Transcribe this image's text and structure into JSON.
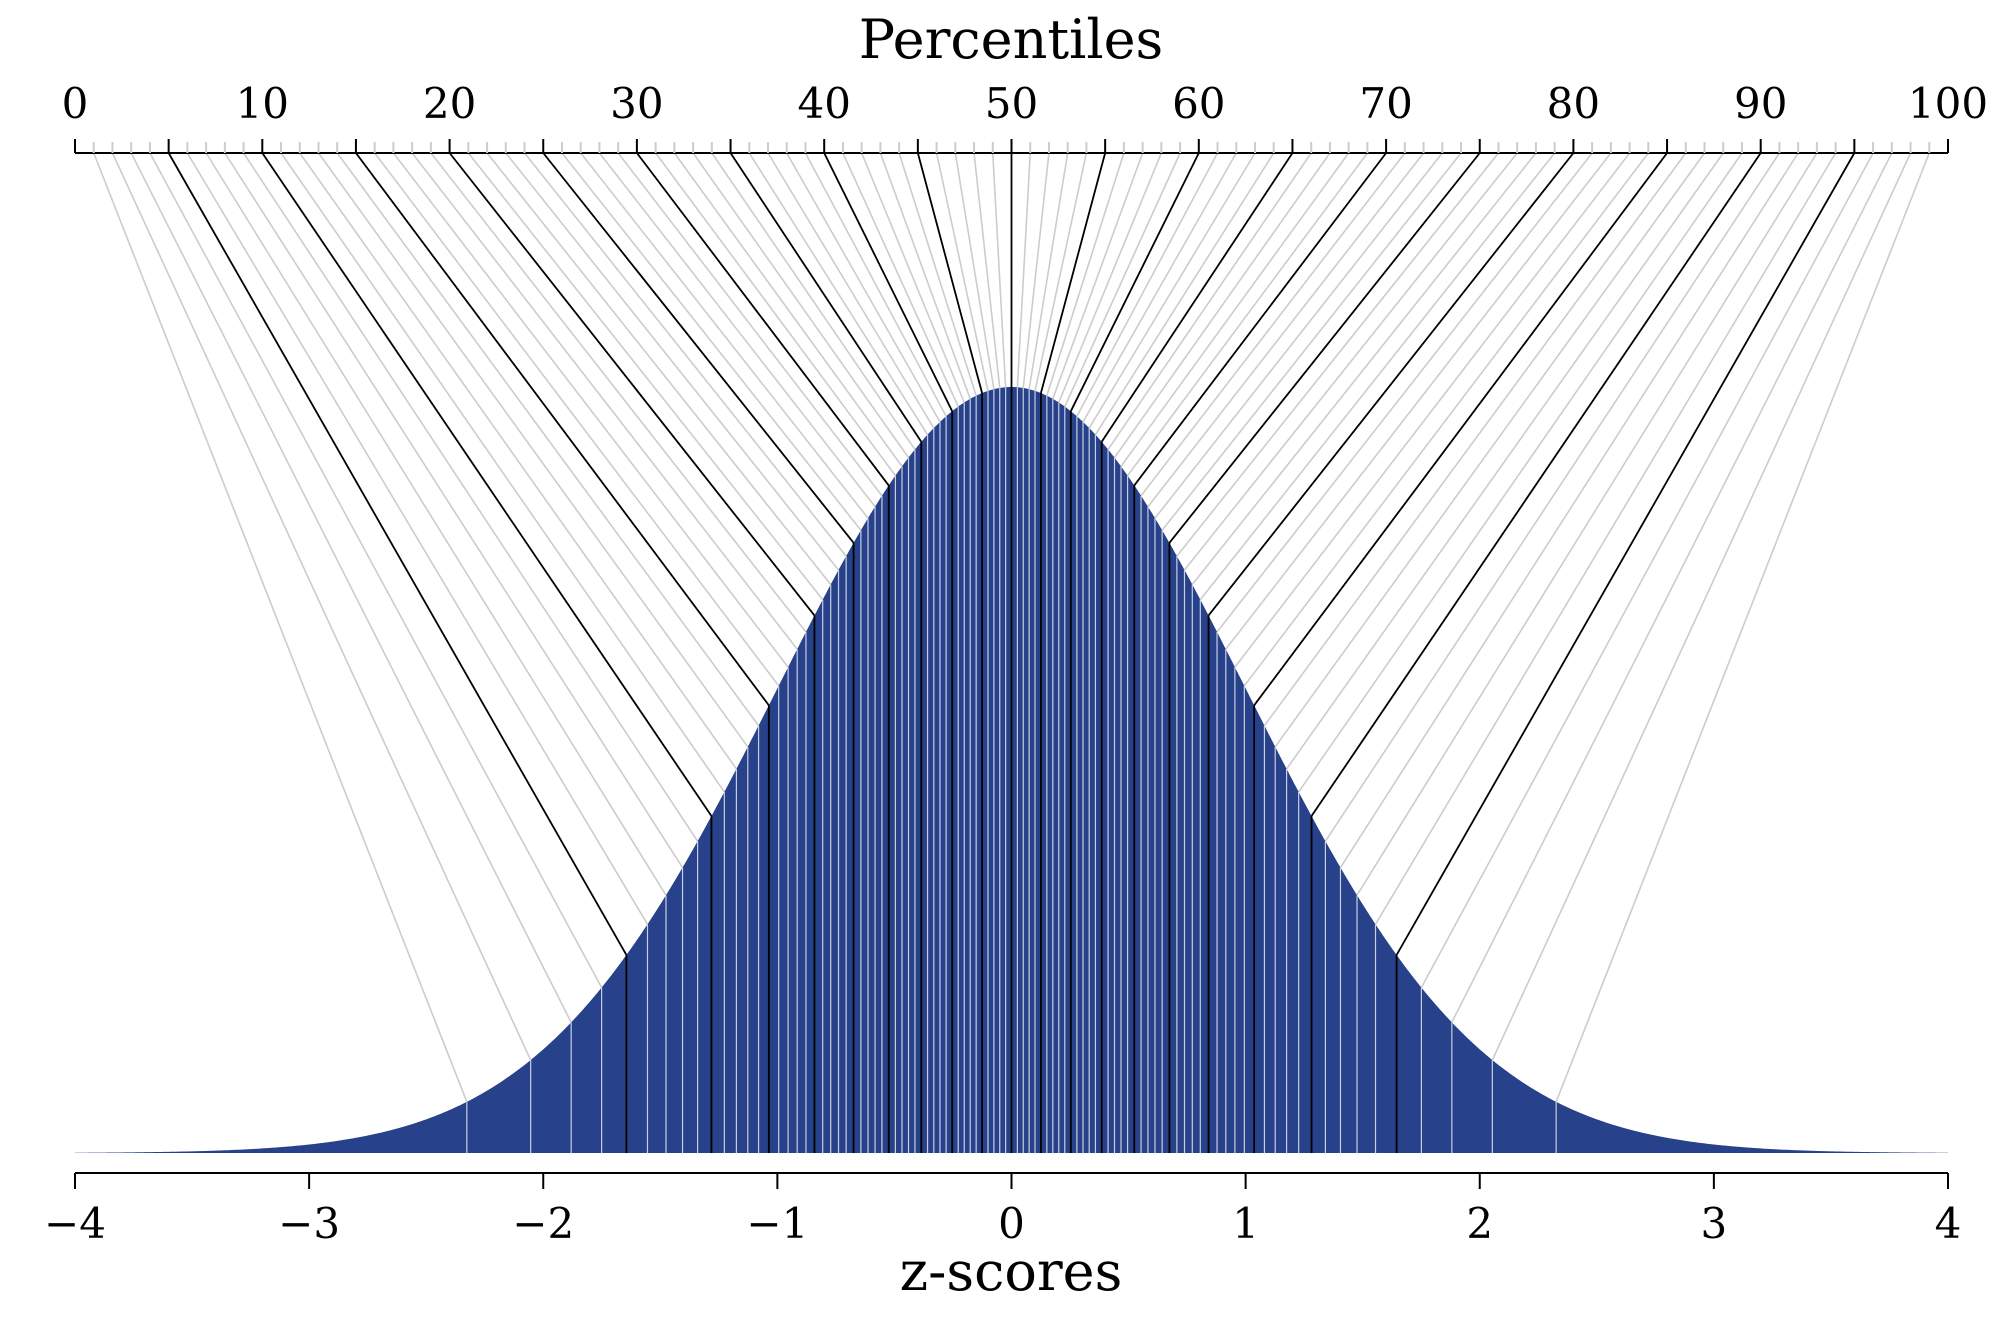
{
  "chart_data": {
    "type": "area",
    "title": "",
    "top_axis": {
      "label": "Percentiles",
      "range": [
        0,
        100
      ],
      "tick_labels": [
        "0",
        "10",
        "20",
        "30",
        "40",
        "50",
        "60",
        "70",
        "80",
        "90",
        "100"
      ],
      "major_ticks_every": 5,
      "minor_ticks_every": 1
    },
    "bottom_axis": {
      "label": "z-scores",
      "range": [
        -4,
        4
      ],
      "tick_values": [
        -4,
        -3,
        -2,
        -1,
        0,
        1,
        2,
        3,
        4
      ],
      "tick_labels": [
        "−4",
        "−3",
        "−2",
        "−1",
        "0",
        "1",
        "2",
        "3",
        "4"
      ]
    },
    "distribution": "standard-normal",
    "percentile_lines": {
      "minor_percentiles": "1 to 99 step 1",
      "major_percentiles": [
        5,
        10,
        15,
        20,
        25,
        30,
        35,
        40,
        45,
        50,
        55,
        60,
        65,
        70,
        75,
        80,
        85,
        90,
        95
      ]
    },
    "grid": false,
    "legend": "none"
  },
  "colors": {
    "fill": "#27418A",
    "major_line": "#000000",
    "minor_line": "#CCCCCC",
    "inner_line": "#FFFFFF",
    "axis": "#000000"
  }
}
